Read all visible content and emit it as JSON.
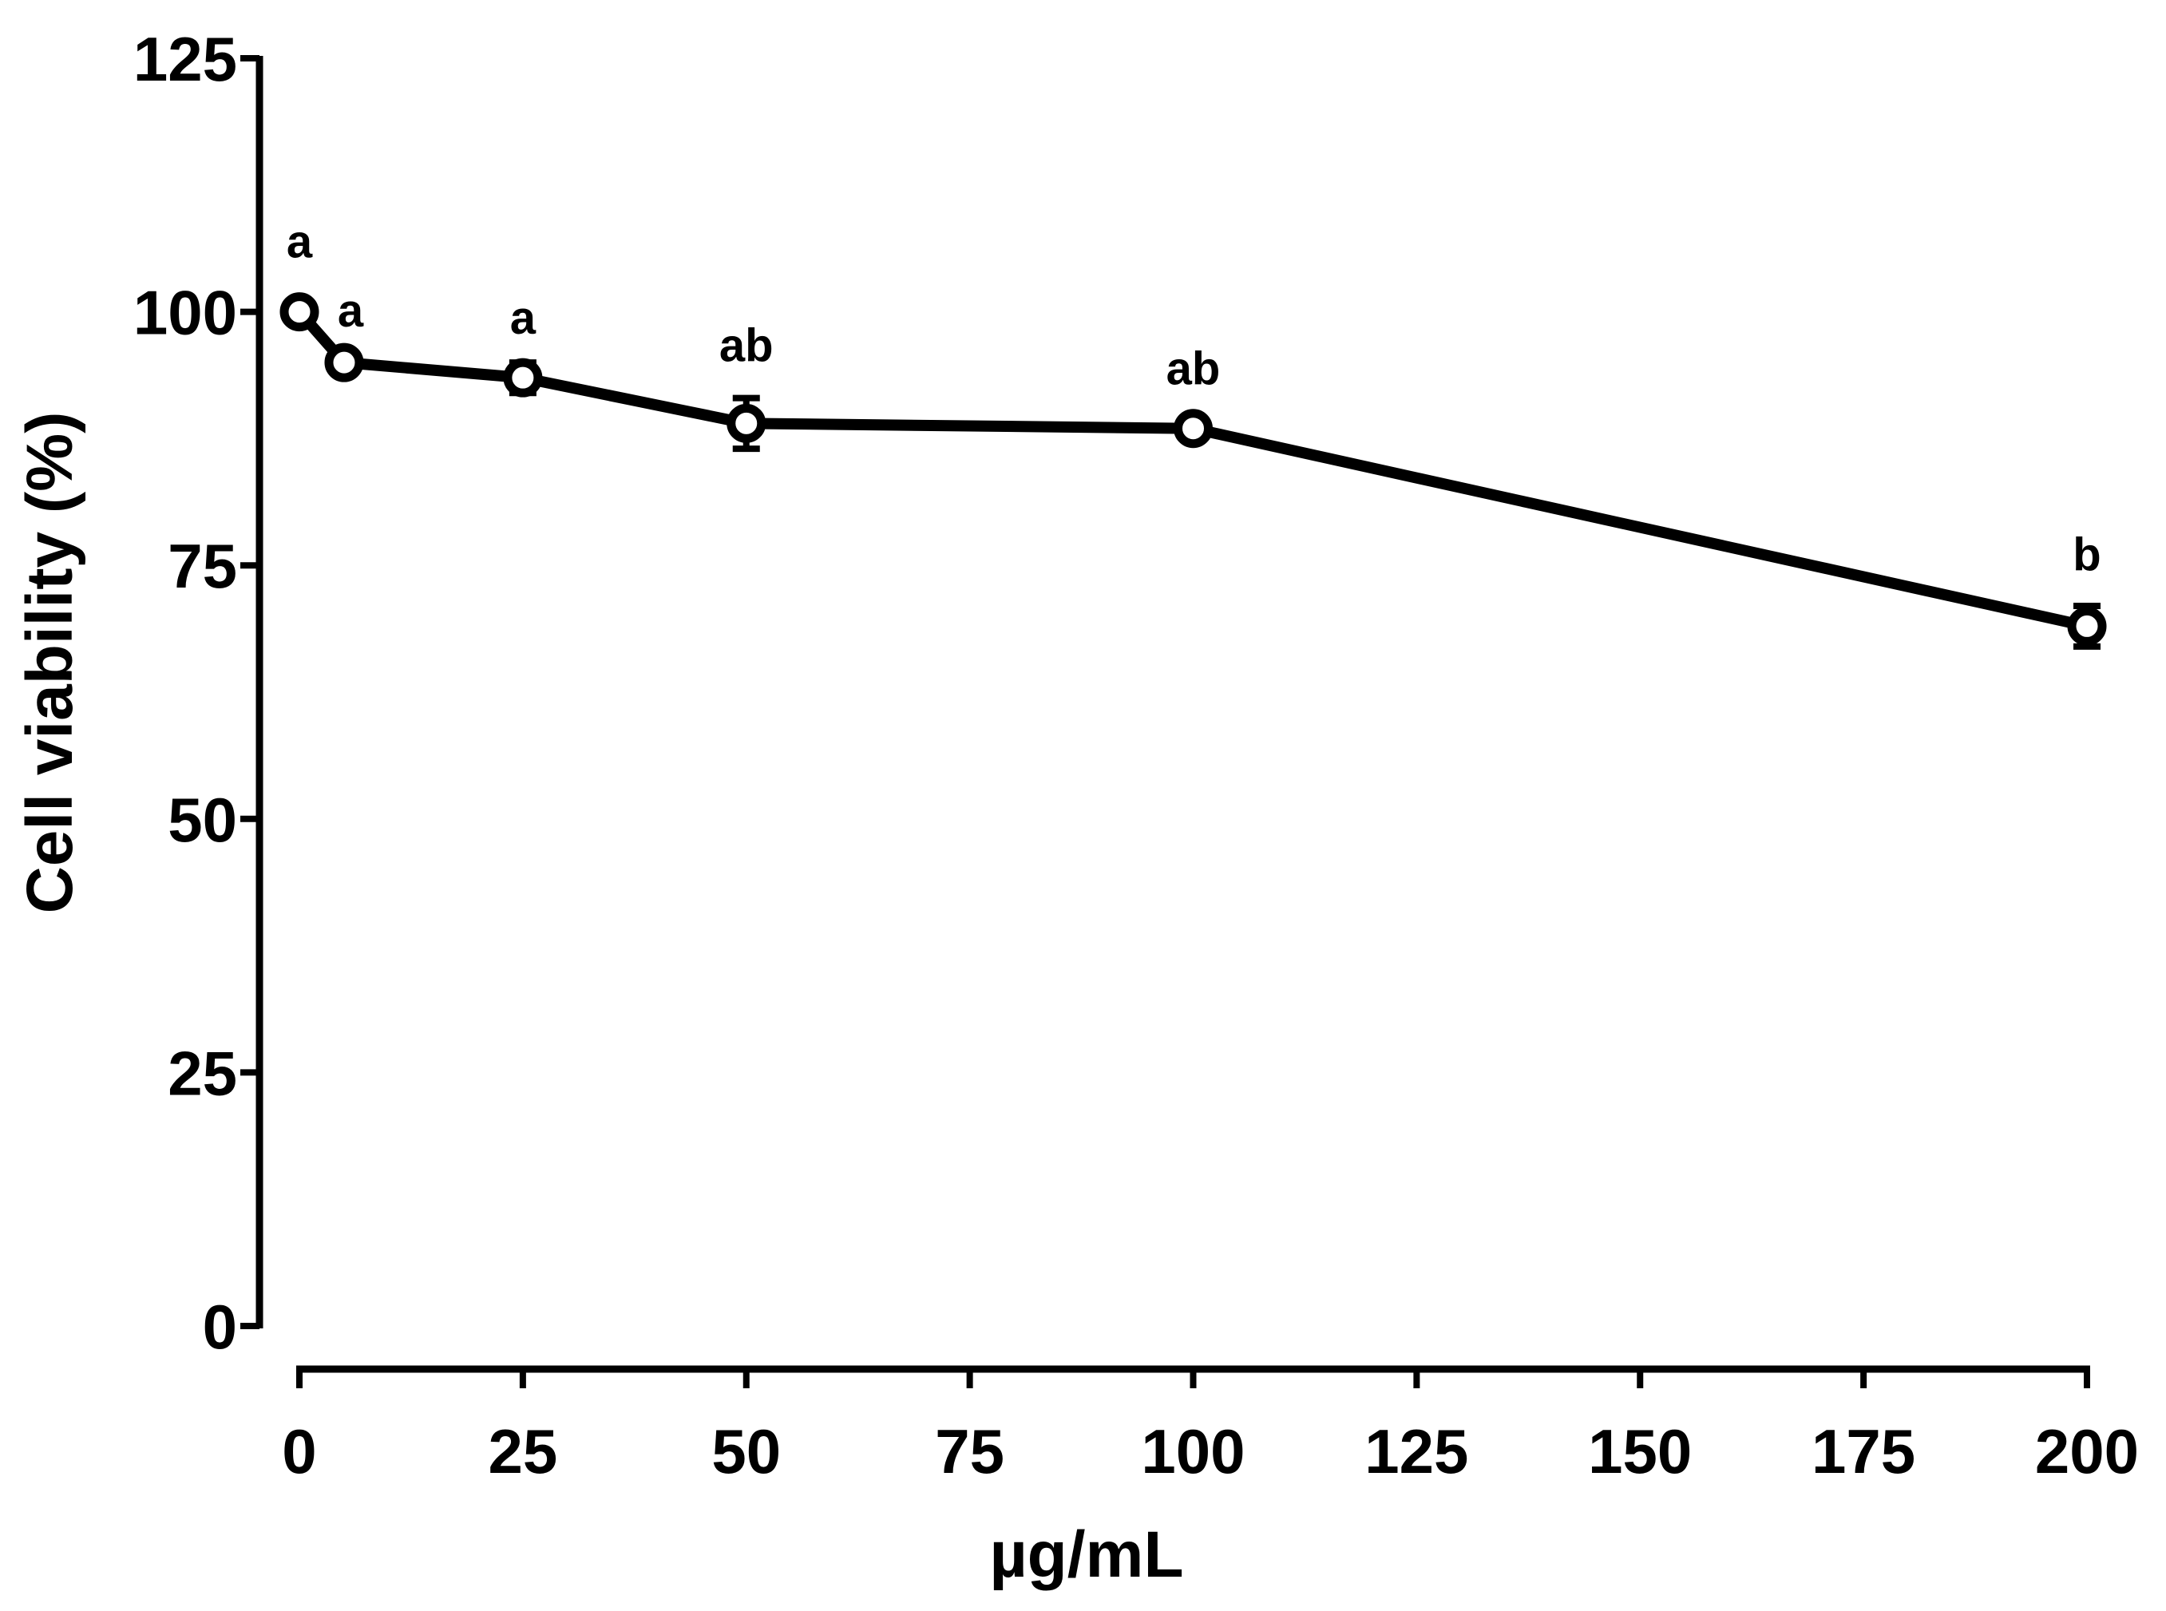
{
  "chart_data": {
    "type": "line",
    "title": "",
    "xlabel": "µg/mL",
    "ylabel": "Cell viability (%)",
    "xlim": [
      0,
      200
    ],
    "ylim": [
      0,
      125
    ],
    "xticks": [
      0,
      25,
      50,
      75,
      100,
      125,
      150,
      175,
      200
    ],
    "yticks": [
      0,
      25,
      50,
      75,
      100,
      125
    ],
    "grid": false,
    "legend": "none",
    "series": [
      {
        "name": "Cell viability",
        "color": "#000000",
        "marker": "open-circle",
        "x": [
          0,
          5,
          25,
          50,
          100,
          200
        ],
        "y": [
          100,
          95,
          93.5,
          89,
          88.5,
          69
        ],
        "error": [
          0.5,
          0.8,
          1.5,
          2.5,
          0.8,
          2.0
        ],
        "labels": [
          "a",
          "a",
          "a",
          "ab",
          "ab",
          "b"
        ]
      }
    ]
  }
}
